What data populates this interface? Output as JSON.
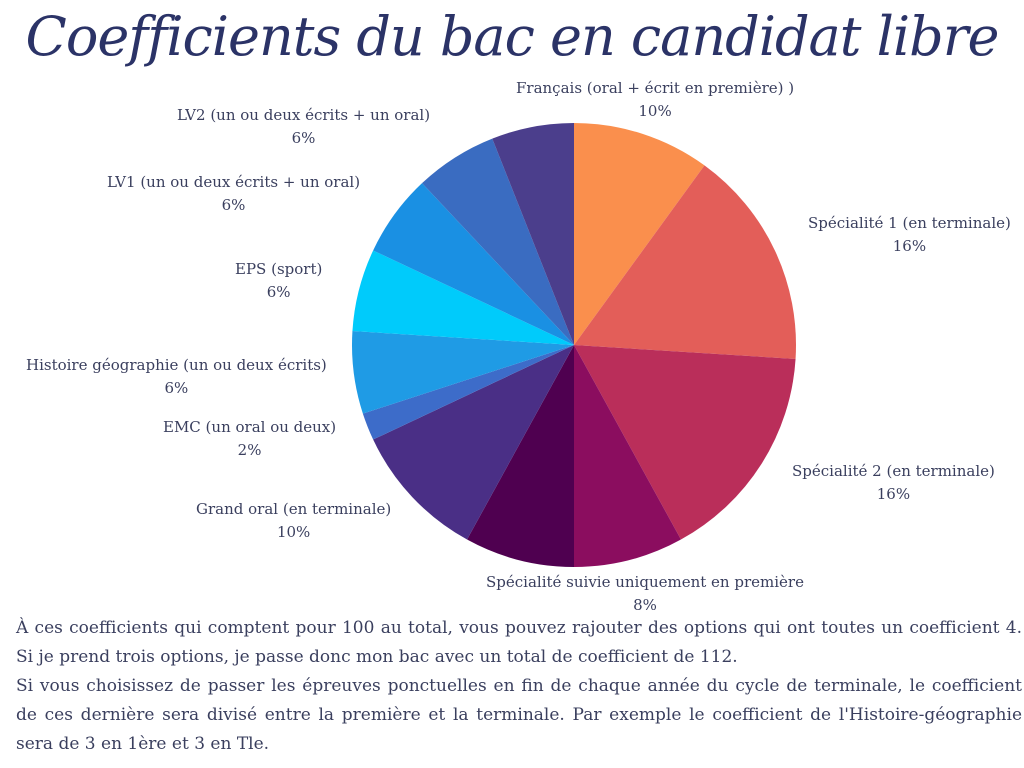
{
  "chart_data": {
    "type": "pie",
    "title": "Coefficients du bac en candidat libre",
    "slices": [
      {
        "label": "Français (oral + écrit en première) )",
        "value": 10,
        "value_label": "10%",
        "color": "#FA8F4D"
      },
      {
        "label": "Spécialité 1 (en terminale)",
        "value": 16,
        "value_label": "16%",
        "color": "#E35E59"
      },
      {
        "label": "Spécialité 2 (en terminale)",
        "value": 16,
        "value_label": "16%",
        "color": "#BA2E5A"
      },
      {
        "label": "Spécialité suivie uniquement en première",
        "value": 8,
        "value_label": "8%",
        "color": "#8B0D5F"
      },
      {
        "label": "",
        "value": 8,
        "value_label": "",
        "color": "#4F0050"
      },
      {
        "label": "Grand oral (en terminale)",
        "value": 10,
        "value_label": "10%",
        "color": "#4A2F86"
      },
      {
        "label": "EMC (un oral ou deux)",
        "value": 2,
        "value_label": "2%",
        "color": "#3D6CC9"
      },
      {
        "label": "Histoire géographie (un ou deux écrits)",
        "value": 6,
        "value_label": "6%",
        "color": "#1F9BE5"
      },
      {
        "label": "EPS (sport)",
        "value": 6,
        "value_label": "6%",
        "color": "#00CBFB"
      },
      {
        "label": "LV1 (un ou deux écrits + un oral)",
        "value": 6,
        "value_label": "6%",
        "color": "#1A90E3"
      },
      {
        "label": "LV2 (un ou deux écrits + un oral)",
        "value": 6,
        "value_label": "6%",
        "color": "#3A6CC1"
      },
      {
        "label": "",
        "value": 6,
        "value_label": "",
        "color": "#4B3E8C"
      }
    ]
  },
  "note": {
    "paragraph1": "À ces coefficients qui comptent pour 100 au total, vous pouvez rajouter des options qui ont toutes un coefficient 4. Si je prend trois options, je passe donc mon bac avec un total de coefficient de 112.",
    "paragraph2": "Si vous choisissez de passer les épreuves ponctuelles en fin de chaque année du cycle de terminale, le coefficient de ces dernière sera divisé entre la première et la terminale. Par exemple le coefficient de l'Histoire-géographie sera de 3 en 1ère et 3 en Tle."
  }
}
